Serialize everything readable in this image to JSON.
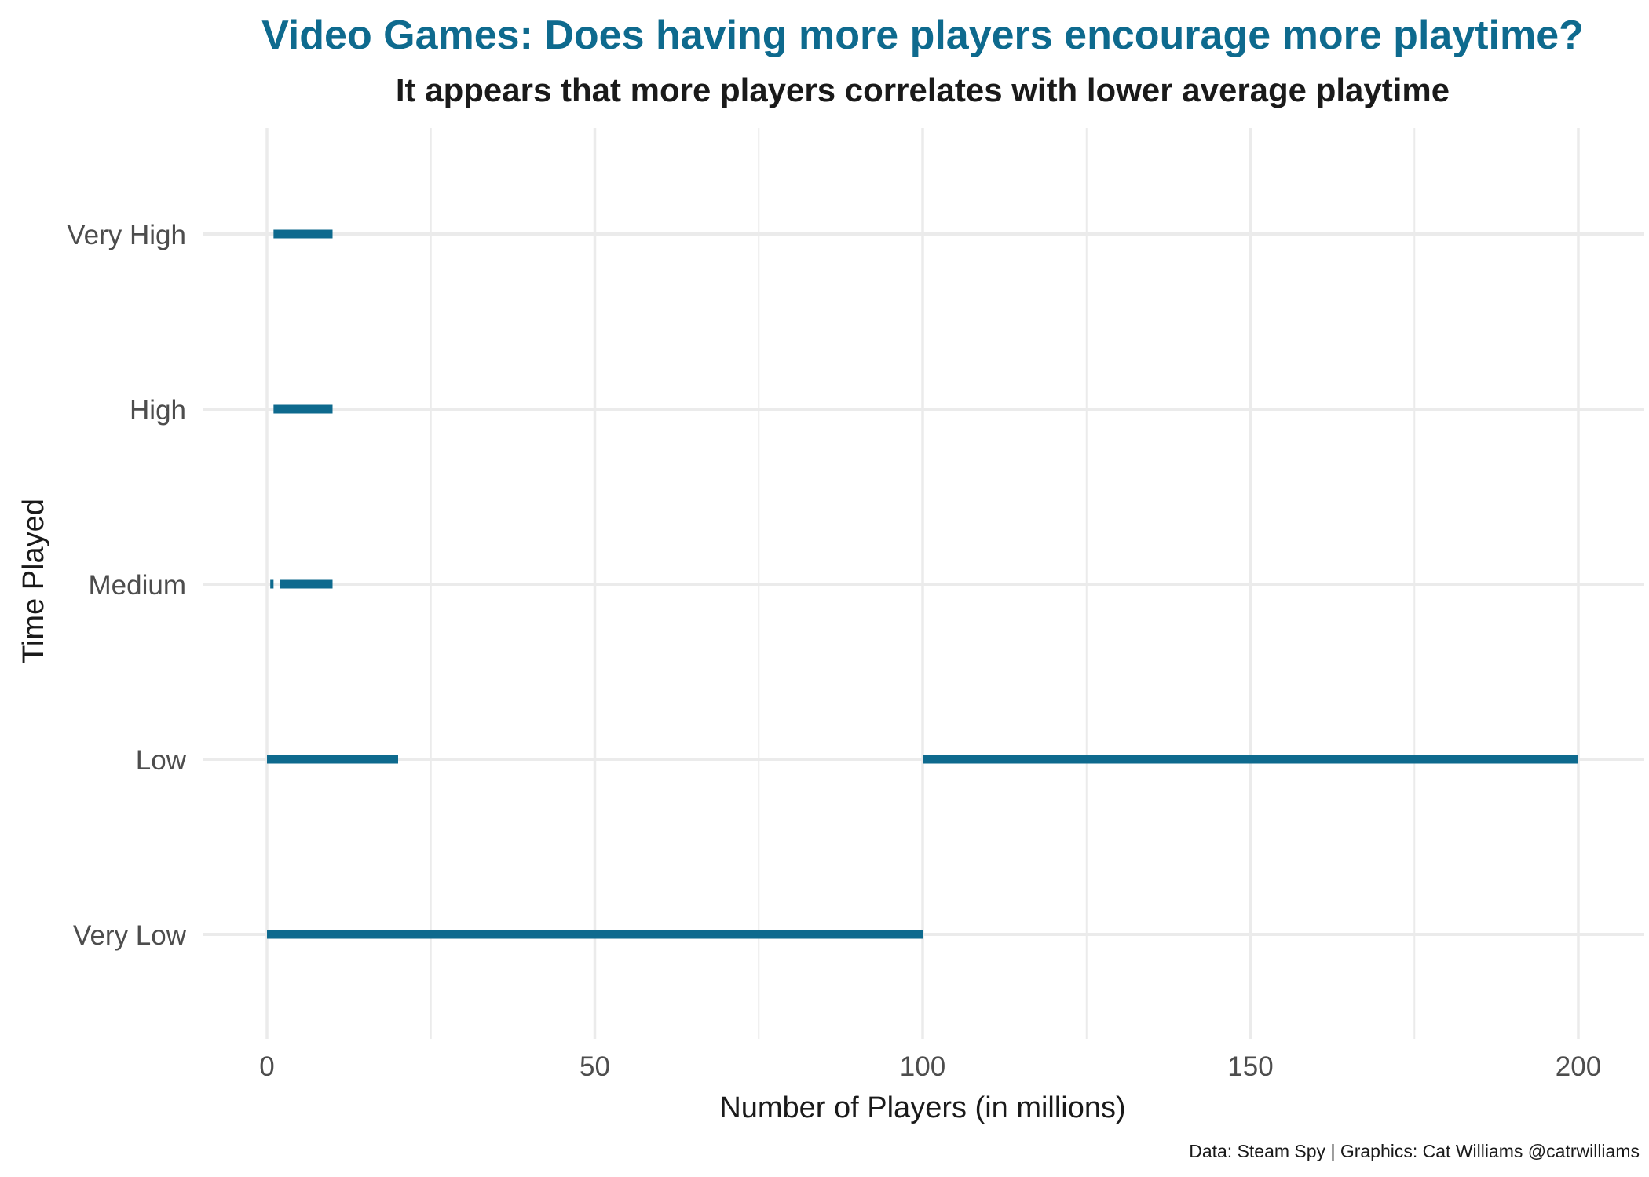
{
  "chart_data": {
    "type": "range-bar",
    "title": "Video Games: Does having more players encourage more playtime?",
    "subtitle": "It appears that more players correlates with lower average playtime",
    "xlabel": "Number of Players (in millions)",
    "ylabel": "Time Played",
    "caption": "Data: Steam Spy | Graphics: Cat Williams @catrwilliams",
    "xlim": [
      -10,
      210
    ],
    "xticks": [
      0,
      50,
      100,
      150,
      200
    ],
    "xtick_labels": [
      "0",
      "50",
      "100",
      "150",
      "200"
    ],
    "categories": [
      "Very High",
      "High",
      "Medium",
      "Low",
      "Very Low"
    ],
    "segments": [
      {
        "category": "Very High",
        "x_start": 1,
        "x_end": 10
      },
      {
        "category": "High",
        "x_start": 1,
        "x_end": 10
      },
      {
        "category": "Medium",
        "x_start": 0.5,
        "x_end": 1
      },
      {
        "category": "Medium",
        "x_start": 2,
        "x_end": 10
      },
      {
        "category": "Low",
        "x_start": 0,
        "x_end": 20
      },
      {
        "category": "Low",
        "x_start": 100,
        "x_end": 200
      },
      {
        "category": "Very Low",
        "x_start": 0,
        "x_end": 100
      }
    ],
    "grid": true,
    "colors": {
      "bar": "#0e6a8e",
      "title": "#0e6a8e",
      "grid": "#ebebeb"
    }
  }
}
